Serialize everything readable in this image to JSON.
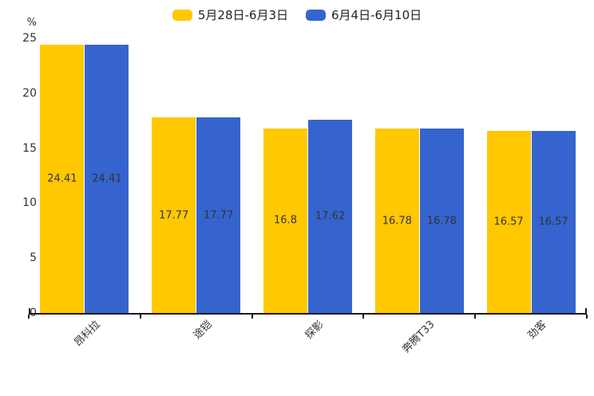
{
  "chart_data": {
    "type": "bar",
    "title": "",
    "ylabel": "%",
    "xlabel": "",
    "ylim": [
      0,
      25
    ],
    "yticks": [
      0,
      5,
      10,
      15,
      20,
      25
    ],
    "grid": false,
    "legend_position": "top",
    "background_color": "#ffffff",
    "axis_color": "#1a1a1a",
    "tick_label_color": "#333333",
    "bar_label_color": "#333333",
    "categories": [
      "昂科拉",
      "途铠",
      "探影",
      "奔腾T33",
      "劲客"
    ],
    "series": [
      {
        "name": "5月28日-6月3日",
        "color": "#FFC800",
        "values": [
          24.41,
          17.77,
          16.8,
          16.78,
          16.57
        ],
        "labels": [
          "24.41",
          "17.77",
          "16.8",
          "16.78",
          "16.57"
        ]
      },
      {
        "name": "6月4日-6月10日",
        "color": "#3564CE",
        "values": [
          24.41,
          17.77,
          17.62,
          16.78,
          16.57
        ],
        "labels": [
          "24.41",
          "17.77",
          "17.62",
          "16.78",
          "16.57"
        ]
      }
    ]
  }
}
